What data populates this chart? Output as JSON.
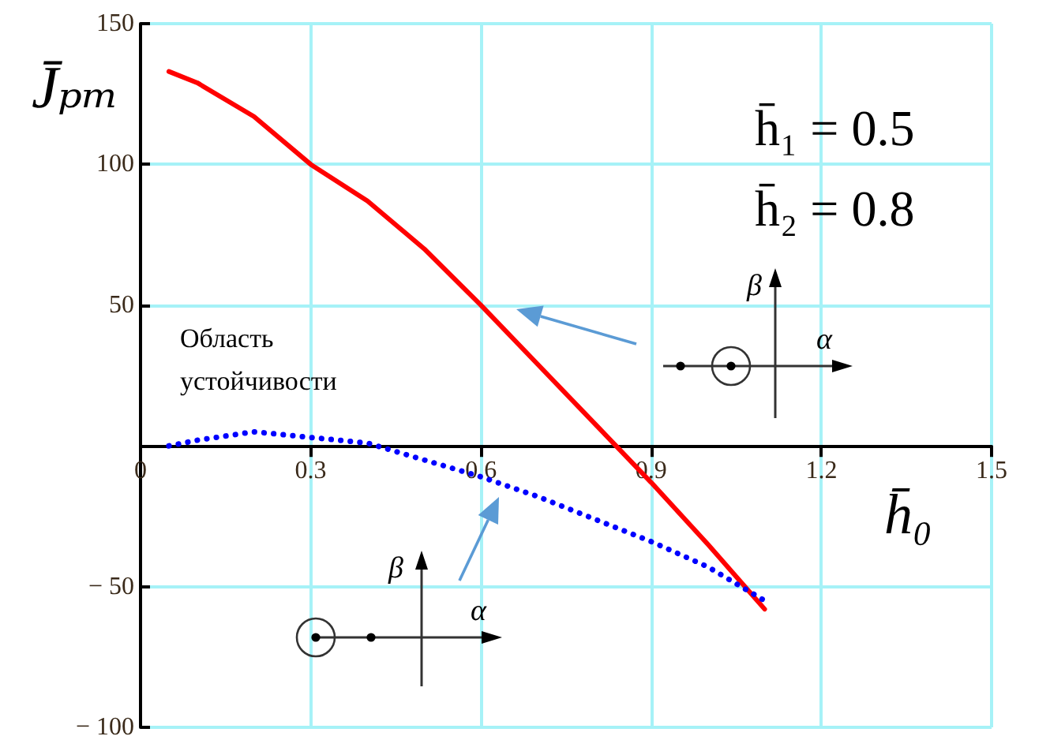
{
  "chart_data": {
    "type": "line",
    "xlabel": "h̄₀",
    "ylabel": "J̄ₚₘ",
    "annotations": [
      "h̄₁ = 0.5",
      "h̄₂ = 0.8",
      "Область устойчивости",
      "β",
      "α",
      "β",
      "α"
    ],
    "xlim": [
      0,
      1.5
    ],
    "xticks": [
      0,
      0.3,
      0.6,
      0.9,
      1.2,
      1.5
    ],
    "ylim": [
      -100,
      150
    ],
    "yticks": [
      {
        "value": -100,
        "label": "− 100"
      },
      {
        "value": -50,
        "label": "− 50"
      },
      {
        "value": 0,
        "label": null
      },
      50,
      100,
      150
    ],
    "grid": true,
    "marker": "none",
    "series": [
      {
        "color": "#ff0000",
        "line_style": "solid",
        "x": [
          0.05,
          0.1,
          0.2,
          0.3,
          0.4,
          0.5,
          0.6,
          0.7,
          0.8,
          0.9,
          1.0,
          1.1
        ],
        "values": [
          133,
          129,
          117,
          100,
          87,
          70,
          50,
          29,
          8,
          -13,
          -35,
          -58
        ]
      },
      {
        "color": "#0000ff",
        "line_style": "dotted",
        "x": [
          0.05,
          0.1,
          0.2,
          0.3,
          0.4,
          0.5,
          0.6,
          0.7,
          0.8,
          0.9,
          1.0,
          1.1
        ],
        "values": [
          0,
          2,
          5,
          3,
          1,
          -5,
          -11,
          -18,
          -26,
          -34,
          -43,
          -55
        ]
      }
    ]
  }
}
